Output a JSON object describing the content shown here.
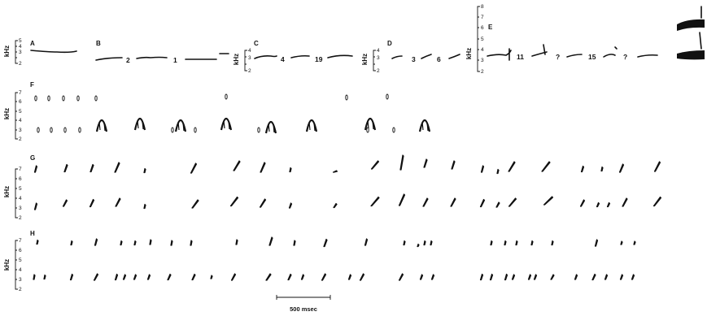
{
  "figure": {
    "ink_color": "#111111",
    "background_color": "#ffffff",
    "scale_bar_label": "500 msec"
  },
  "chart_data": [
    {
      "type": "scatter",
      "panel": "A",
      "ylabel": "kHz",
      "yticks": [
        "5",
        "4",
        "3",
        "2"
      ],
      "ylim": [
        2,
        5
      ],
      "annotations": []
    },
    {
      "type": "scatter",
      "panel": "B",
      "annotations": [
        "2",
        "1"
      ]
    },
    {
      "type": "scatter",
      "panel": "C",
      "ylabel": "kHz",
      "yticks": [
        "4",
        "3",
        "2"
      ],
      "ylim": [
        2,
        4
      ],
      "annotations": [
        "4",
        "19"
      ]
    },
    {
      "type": "scatter",
      "panel": "D",
      "ylabel": "kHz",
      "yticks": [
        "4",
        "3",
        "2"
      ],
      "ylim": [
        2,
        4
      ],
      "annotations": [
        "3",
        "6"
      ]
    },
    {
      "type": "scatter",
      "panel": "E",
      "ylabel": "kHz",
      "yticks": [
        "8",
        "7",
        "6",
        "5",
        "4",
        "3",
        "2"
      ],
      "ylim": [
        2,
        8
      ],
      "annotations": [
        "11",
        "?",
        "15",
        "?"
      ]
    },
    {
      "type": "scatter",
      "panel": "F",
      "ylabel": "kHz",
      "yticks": [
        "7",
        "6",
        "5",
        "4",
        "3",
        "2"
      ],
      "ylim": [
        2,
        7
      ],
      "annotations": []
    },
    {
      "type": "scatter",
      "panel": "G",
      "ylabel": "kHz",
      "yticks": [
        "7",
        "6",
        "5",
        "4",
        "3",
        "2"
      ],
      "ylim": [
        2,
        7
      ],
      "annotations": []
    },
    {
      "type": "scatter",
      "panel": "H",
      "ylabel": "kHz",
      "yticks": [
        "7",
        "6",
        "5",
        "4",
        "3",
        "2"
      ],
      "ylim": [
        2,
        7
      ],
      "annotations": []
    }
  ]
}
